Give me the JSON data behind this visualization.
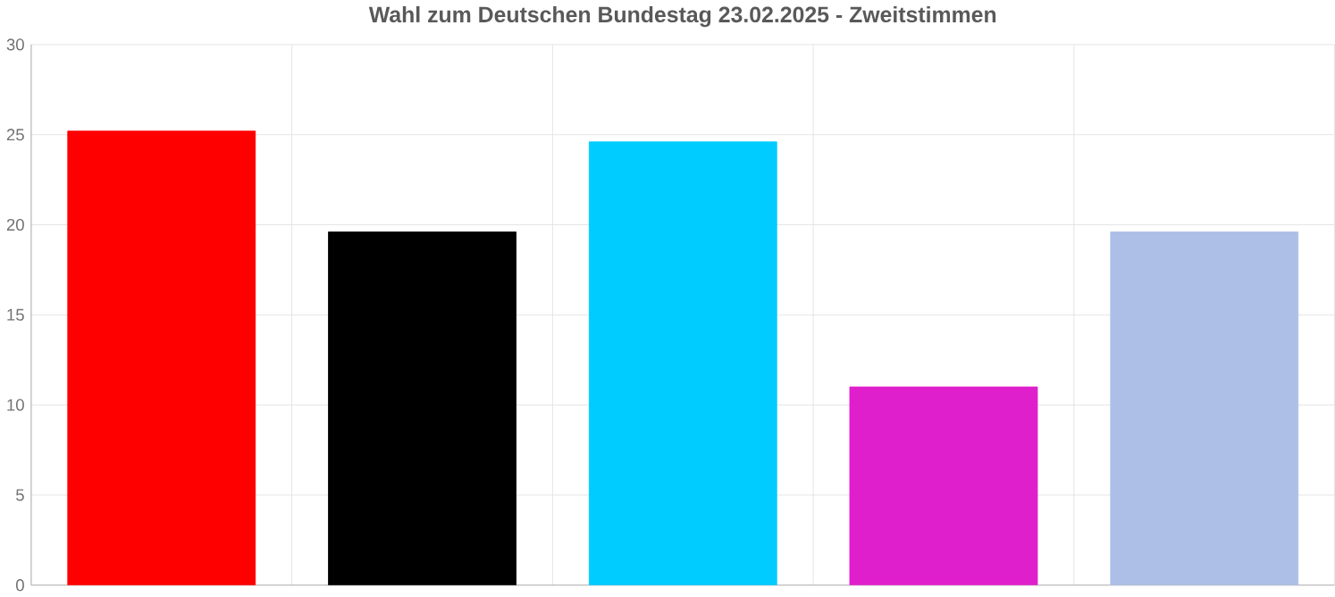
{
  "chart_data": {
    "type": "bar",
    "title": "Wahl zum Deutschen Bundestag 23.02.2025  - Zweitstimmen",
    "categories": [
      null,
      null,
      null,
      null,
      null
    ],
    "values": [
      25.2,
      19.6,
      24.6,
      11.0,
      19.6
    ],
    "colors": [
      "#ff0000",
      "#000000",
      "#00ccff",
      "#e01fcc",
      "#adbfe6"
    ],
    "ylim": [
      0,
      30
    ],
    "yticks": [
      0,
      5,
      10,
      15,
      20,
      25,
      30
    ],
    "grid": true
  }
}
